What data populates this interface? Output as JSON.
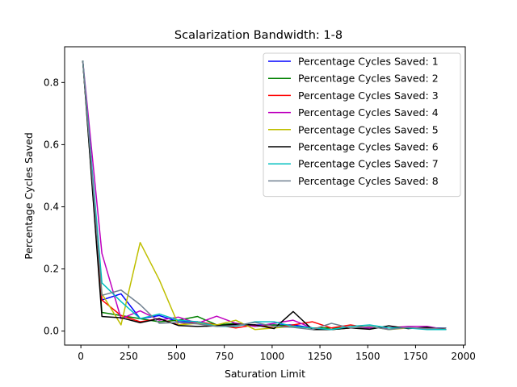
{
  "chart_data": {
    "type": "line",
    "title": "Scalarization Bandwidth: 1-8",
    "xlabel": "Saturation Limit",
    "ylabel": "Percentage Cycles Saved",
    "xlim": [
      -85,
      2010
    ],
    "ylim": [
      -0.045,
      0.915
    ],
    "xticks": [
      0,
      250,
      500,
      750,
      1000,
      1250,
      1500,
      1750,
      2000
    ],
    "yticks": [
      0.0,
      0.2,
      0.4,
      0.6,
      0.8
    ],
    "ytick_labels": [
      "0.0",
      "0.2",
      "0.4",
      "0.6",
      "0.8"
    ],
    "grid": false,
    "legend_position": "top-right",
    "x": [
      10,
      110,
      210,
      310,
      410,
      510,
      610,
      710,
      810,
      910,
      1010,
      1110,
      1210,
      1310,
      1410,
      1510,
      1610,
      1710,
      1810,
      1910
    ],
    "series": [
      {
        "name": "Percentage Cycles Saved: 1",
        "color": "#0000ff",
        "values": [
          0.87,
          0.1,
          0.12,
          0.04,
          0.05,
          0.03,
          0.03,
          0.02,
          0.02,
          0.02,
          0.02,
          0.02,
          0.01,
          0.01,
          0.01,
          0.01,
          0.01,
          0.01,
          0.01,
          0.01
        ]
      },
      {
        "name": "Percentage Cycles Saved: 2",
        "color": "#008000",
        "values": [
          0.87,
          0.06,
          0.05,
          0.04,
          0.03,
          0.035,
          0.047,
          0.02,
          0.025,
          0.015,
          0.02,
          0.015,
          0.01,
          0.01,
          0.01,
          0.01,
          0.01,
          0.01,
          0.01,
          0.005
        ]
      },
      {
        "name": "Percentage Cycles Saved: 3",
        "color": "#ff0000",
        "values": [
          0.87,
          0.1,
          0.05,
          0.03,
          0.04,
          0.02,
          0.03,
          0.02,
          0.01,
          0.02,
          0.01,
          0.02,
          0.03,
          0.01,
          0.02,
          0.01,
          0.01,
          0.01,
          0.01,
          0.005
        ]
      },
      {
        "name": "Percentage Cycles Saved: 4",
        "color": "#bf00bf",
        "values": [
          0.87,
          0.25,
          0.04,
          0.065,
          0.035,
          0.045,
          0.025,
          0.048,
          0.025,
          0.015,
          0.025,
          0.035,
          0.01,
          0.005,
          0.01,
          0.01,
          0.01,
          0.015,
          0.015,
          0.005
        ]
      },
      {
        "name": "Percentage Cycles Saved: 5",
        "color": "#bfbf00",
        "values": [
          0.87,
          0.12,
          0.02,
          0.285,
          0.165,
          0.02,
          0.025,
          0.02,
          0.035,
          0.005,
          0.01,
          0.015,
          0.01,
          0.005,
          0.01,
          0.015,
          0.005,
          0.01,
          0.01,
          0.005
        ]
      },
      {
        "name": "Percentage Cycles Saved: 6",
        "color": "#000000",
        "values": [
          0.87,
          0.047,
          0.043,
          0.027,
          0.04,
          0.018,
          0.015,
          0.017,
          0.022,
          0.02,
          0.008,
          0.063,
          0.005,
          0.005,
          0.01,
          0.006,
          0.017,
          0.008,
          0.012,
          0.005
        ]
      },
      {
        "name": "Percentage Cycles Saved: 7",
        "color": "#00bfbf",
        "values": [
          0.87,
          0.155,
          0.095,
          0.04,
          0.055,
          0.035,
          0.03,
          0.015,
          0.015,
          0.03,
          0.03,
          0.015,
          0.01,
          0.005,
          0.015,
          0.02,
          0.01,
          0.01,
          0.005,
          0.005
        ]
      },
      {
        "name": "Percentage Cycles Saved: 8",
        "color": "#708090",
        "values": [
          0.87,
          0.115,
          0.132,
          0.085,
          0.025,
          0.028,
          0.023,
          0.015,
          0.018,
          0.028,
          0.015,
          0.012,
          0.005,
          0.025,
          0.01,
          0.015,
          0.005,
          0.012,
          0.008,
          0.01
        ]
      }
    ]
  }
}
